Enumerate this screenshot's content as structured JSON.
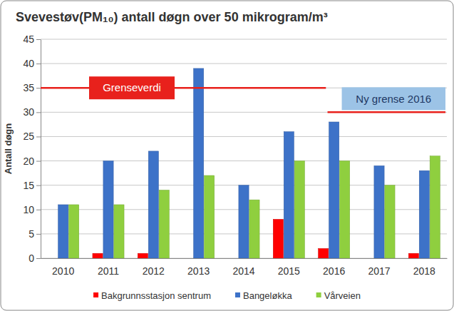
{
  "chart_data": {
    "type": "bar",
    "title": "Svevestøv(PM₁₀) antall døgn over 50 mikrogram/m³",
    "y_label": "Antall døgn",
    "categories": [
      "2010",
      "2011",
      "2012",
      "2013",
      "2014",
      "2015",
      "2016",
      "2017",
      "2018"
    ],
    "series": [
      {
        "name": "Bakgrunnsstasjon sentrum",
        "color": "#ff0000",
        "values": [
          null,
          1,
          1,
          null,
          null,
          8,
          2,
          null,
          1
        ]
      },
      {
        "name": "Bangeløkka",
        "color": "#3d72c8",
        "values": [
          11,
          20,
          22,
          39,
          15,
          26,
          28,
          19,
          18
        ]
      },
      {
        "name": "Vårveien",
        "color": "#8fcf3f",
        "values": [
          11,
          11,
          14,
          17,
          12,
          20,
          20,
          15,
          21
        ]
      }
    ],
    "annotations": [
      {
        "text": "Grenseverdi",
        "value": 35,
        "color": "#e8211c"
      },
      {
        "text": "Ny grense 2016",
        "value": 30,
        "color": "#e8211c"
      }
    ],
    "ylim": [
      0,
      45
    ],
    "yticks": [
      0,
      5,
      10,
      15,
      20,
      25,
      30,
      35,
      40,
      45
    ],
    "grid": true,
    "legend": "bottom"
  }
}
